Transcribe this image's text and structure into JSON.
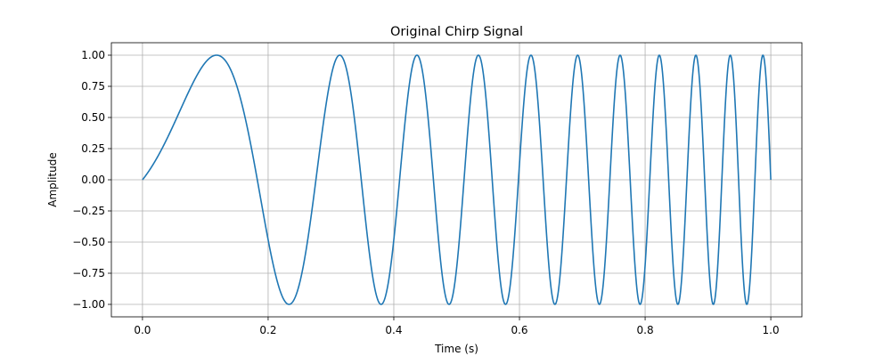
{
  "chart_data": {
    "type": "line",
    "title": "Original Chirp Signal",
    "xlabel": "Time (s)",
    "ylabel": "Amplitude",
    "xlim": [
      -0.0495,
      1.0495
    ],
    "ylim": [
      -1.1,
      1.1
    ],
    "xticks": [
      0.0,
      0.2,
      0.4,
      0.6,
      0.8,
      1.0
    ],
    "xtick_labels": [
      "0.0",
      "0.2",
      "0.4",
      "0.6",
      "0.8",
      "1.0"
    ],
    "yticks": [
      -1.0,
      -0.75,
      -0.5,
      -0.25,
      0.0,
      0.25,
      0.5,
      0.75,
      1.0
    ],
    "ytick_labels": [
      "−1.00",
      "−0.75",
      "−0.50",
      "−0.25",
      "0.00",
      "0.25",
      "0.50",
      "0.75",
      "1.00"
    ],
    "grid": true,
    "series": [
      {
        "signal": "cos(2*pi*(f0*t + (f1-f0)/2*t^2) - pi/2)",
        "f0": 1,
        "f1": 20,
        "t_range": [
          0.0,
          1.0
        ],
        "color": "#1f77b4"
      }
    ]
  }
}
